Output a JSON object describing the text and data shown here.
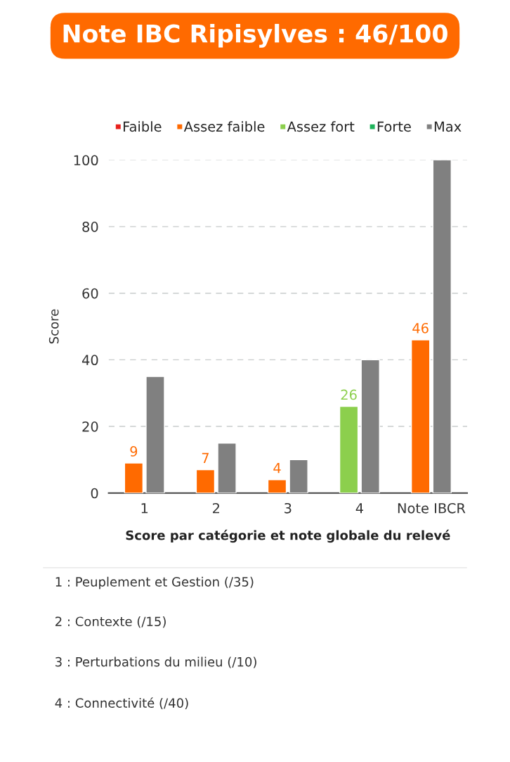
{
  "chart_data": {
    "type": "bar",
    "title": "Note IBC Ripisylves : 46/100",
    "xlabel": "Score par catégorie et note globale du relevé",
    "ylabel": "Score",
    "categories": [
      "1",
      "2",
      "3",
      "4",
      "Note IBCR"
    ],
    "series": [
      {
        "name": "Faible",
        "color": "#e8211c",
        "values": [
          null,
          null,
          null,
          null,
          null
        ]
      },
      {
        "name": "Assez faible",
        "color": "#ff6a00",
        "values": [
          9,
          7,
          4,
          null,
          46
        ],
        "value_labels": [
          "9",
          "7",
          "4",
          null,
          "46"
        ]
      },
      {
        "name": "Assez fort",
        "color": "#8ccf4d",
        "values": [
          null,
          null,
          null,
          26,
          null
        ],
        "value_labels": [
          null,
          null,
          null,
          "26",
          null
        ]
      },
      {
        "name": "Forte",
        "color": "#1fb35a",
        "values": [
          null,
          null,
          null,
          null,
          null
        ]
      },
      {
        "name": "Max",
        "color": "#808080",
        "values": [
          35,
          15,
          10,
          40,
          100
        ]
      }
    ],
    "ylim": [
      0,
      100
    ],
    "yticks": [
      0,
      20,
      40,
      60,
      80,
      100
    ],
    "grid": "y",
    "legend": "top",
    "annotations": [
      "1 : Peuplement et Gestion (/35)",
      "2 : Contexte (/15)",
      "3 : Perturbations du milieu (/10)",
      "4 : Connectivité (/40)"
    ]
  }
}
